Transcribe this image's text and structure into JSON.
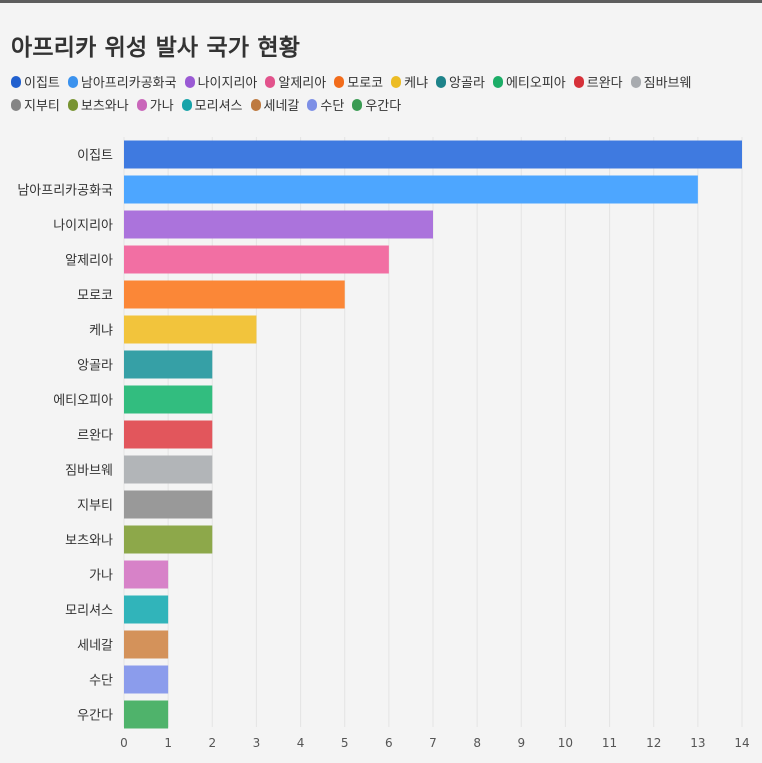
{
  "chart_data": {
    "type": "bar",
    "orientation": "horizontal",
    "title": "아프리카 위성 발사 국가 현황",
    "xlabel": "",
    "ylabel": "",
    "xlim": [
      0,
      14
    ],
    "xticks": [
      "0",
      "1",
      "2",
      "3",
      "4",
      "5",
      "6",
      "7",
      "8",
      "9",
      "10",
      "11",
      "12",
      "13",
      "14"
    ],
    "grid": true,
    "legend_position": "top",
    "categories": [
      "이집트",
      "남아프리카공화국",
      "나이지리아",
      "알제리아",
      "모로코",
      "케냐",
      "앙골라",
      "에티오피아",
      "르완다",
      "짐바브웨",
      "지부티",
      "보츠와나",
      "가나",
      "모리셔스",
      "세네갈",
      "수단",
      "우간다"
    ],
    "values": [
      14,
      13,
      7,
      6,
      5,
      3,
      2,
      2,
      2,
      2,
      2,
      2,
      1,
      1,
      1,
      1,
      1
    ],
    "bar_colors": [
      "#3f7ae0",
      "#4da6ff",
      "#ab73dc",
      "#f26fa3",
      "#fb8737",
      "#f2c43c",
      "#36a0a6",
      "#32bd7f",
      "#e2565c",
      "#b2b5b8",
      "#999999",
      "#8da84a",
      "#d782c8",
      "#31b4ba",
      "#d4925a",
      "#8b9cec",
      "#4fb36b"
    ],
    "legend_colors": [
      "#2160cf",
      "#3b92ee",
      "#9a5ad4",
      "#e2538c",
      "#f26c1b",
      "#ecbc24",
      "#1e838a",
      "#1cad67",
      "#d63139",
      "#a8abaf",
      "#858585",
      "#789432",
      "#c966ba",
      "#17a3a9",
      "#be7a40",
      "#7d8fe6",
      "#3a9b53"
    ]
  }
}
